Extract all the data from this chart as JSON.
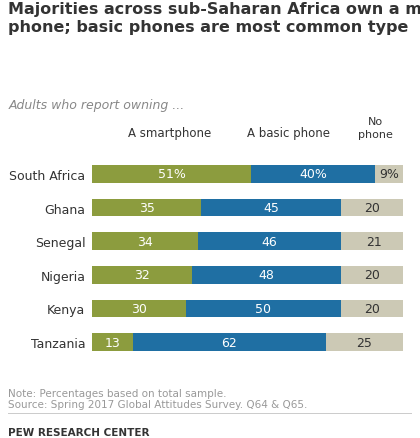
{
  "title": "Majorities across sub-Saharan Africa own a mobile\nphone; basic phones are most common type",
  "subtitle": "Adults who report owning ...",
  "categories": [
    "South Africa",
    "Ghana",
    "Senegal",
    "Nigeria",
    "Kenya",
    "Tanzania"
  ],
  "smartphone": [
    51,
    35,
    34,
    32,
    30,
    13
  ],
  "basic_phone": [
    40,
    45,
    46,
    48,
    50,
    62
  ],
  "no_phone": [
    9,
    20,
    21,
    20,
    20,
    25
  ],
  "smartphone_color": "#8c9c3e",
  "basic_phone_color": "#1f6fa3",
  "no_phone_color": "#ccc9b5",
  "smartphone_label": "A smartphone",
  "basic_phone_label": "A basic phone",
  "no_phone_label": "No\nphone",
  "note": "Note: Percentages based on total sample.\nSource: Spring 2017 Global Attitudes Survey. Q64 & Q65.",
  "source_label": "PEW RESEARCH CENTER",
  "text_color_white": "#ffffff",
  "text_color_dark": "#333333",
  "text_color_note": "#999999",
  "bg_color": "#ffffff",
  "title_fontsize": 11.5,
  "subtitle_fontsize": 9,
  "header_fontsize": 8.5,
  "label_fontsize": 9,
  "note_fontsize": 7.5,
  "bar_height": 0.52
}
